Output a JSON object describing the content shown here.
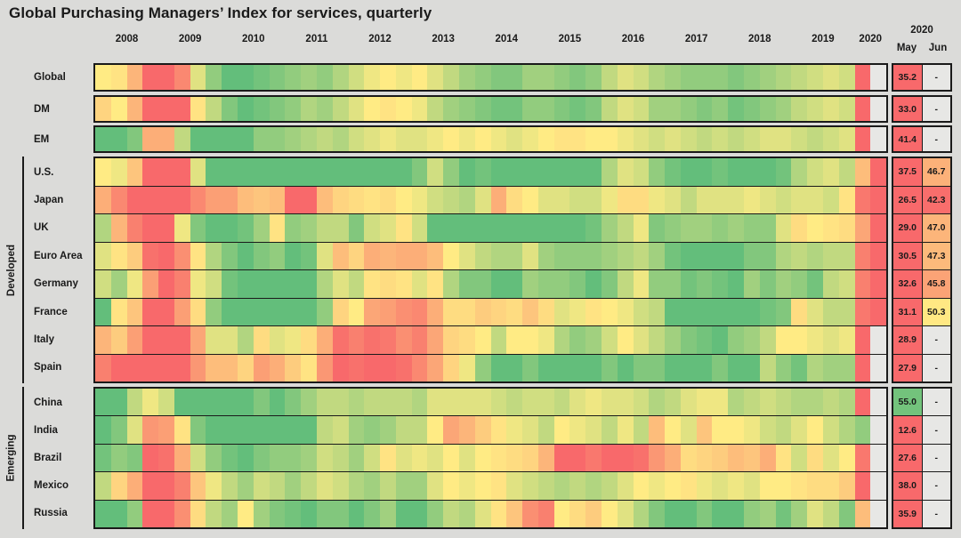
{
  "title": "Global Purchasing Managers’ Index for services, quarterly",
  "years": [
    "2008",
    "2009",
    "2010",
    "2011",
    "2012",
    "2013",
    "2014",
    "2015",
    "2016",
    "2017",
    "2018",
    "2019",
    "2020"
  ],
  "right_header": {
    "year": "2020",
    "may": "May",
    "jun": "Jun"
  },
  "no_data_marker": "-",
  "colors": {
    "background": "#DBDBD9",
    "border": "#1a1a1a",
    "empty_cell": "#E7E7E5",
    "scale_low": "#F8696B",
    "scale_mid": "#FFEB84",
    "scale_high": "#63BE7B"
  },
  "chart_data": {
    "type": "heatmap",
    "title": "Global Purchasing Managers’ Index for services, quarterly",
    "x_start": "2008Q1",
    "x_end": "2020Q2",
    "quarters_per_year": 4,
    "x_labels": [
      "2008",
      "2009",
      "2010",
      "2011",
      "2012",
      "2013",
      "2014",
      "2015",
      "2016",
      "2017",
      "2018",
      "2019",
      "2020"
    ],
    "extra_columns": [
      "May 2020",
      "Jun 2020"
    ],
    "legend_position": "none",
    "color_scale": {
      "low": {
        "value": 42,
        "color": "#F8696B"
      },
      "mid": {
        "value": 50.5,
        "color": "#FFEB84"
      },
      "high": {
        "value": 55.5,
        "color": "#63BE7B"
      }
    },
    "values_note": "quarterly cell values estimated from cell colors; May/Jun 2020 values printed on chart",
    "groups": [
      {
        "label": "",
        "rows": [
          {
            "label": "Global",
            "may": 35.2,
            "jun": null,
            "quarterly": [
              50.5,
              50,
              47,
              40,
              40,
              44,
              51.5,
              54,
              55.5,
              56,
              55,
              54.5,
              54,
              53.5,
              54,
              53,
              52,
              51,
              50.5,
              51,
              50.5,
              51.5,
              52.5,
              53.5,
              54,
              54.5,
              54.5,
              53.5,
              53.5,
              54,
              54.5,
              54,
              52.5,
              51.5,
              52,
              53,
              53.5,
              54,
              54,
              54,
              54.5,
              54,
              53.5,
              53,
              52.5,
              52,
              51.5,
              52,
              40,
              null
            ]
          }
        ]
      },
      {
        "label": "",
        "rows": [
          {
            "label": "DM",
            "may": 33.0,
            "jun": null,
            "quarterly": [
              49,
              50.5,
              47,
              39.5,
              39.5,
              39.5,
              50,
              52.5,
              54.5,
              55.5,
              55,
              54.5,
              54,
              53,
              53.5,
              52.5,
              51.5,
              50.5,
              50,
              50.5,
              51,
              52.5,
              53.5,
              54,
              54.5,
              55,
              55,
              54,
              54,
              54.5,
              55,
              54.5,
              52.5,
              51.5,
              52,
              53.5,
              53.5,
              54,
              54.5,
              54,
              55,
              54.5,
              54,
              53.5,
              52.5,
              52,
              51.5,
              52,
              38,
              null
            ]
          }
        ]
      },
      {
        "label": "",
        "rows": [
          {
            "label": "EM",
            "may": 41.4,
            "jun": null,
            "quarterly": [
              56,
              55.5,
              54.5,
              46.5,
              46.5,
              52.5,
              56,
              56,
              56,
              55.5,
              54,
              54,
              53.5,
              53,
              52.5,
              53,
              52,
              51.5,
              51,
              51.5,
              51.5,
              51,
              50.5,
              51,
              50.5,
              51,
              51.5,
              51,
              50.5,
              50,
              50,
              50.5,
              50.5,
              51,
              51.5,
              52,
              51.5,
              52,
              52.5,
              52,
              52.5,
              52,
              51.5,
              51.5,
              52,
              52.5,
              52,
              51.5,
              41,
              null
            ]
          }
        ]
      },
      {
        "label": "Developed",
        "rows": [
          {
            "label": "U.S.",
            "may": 37.5,
            "jun": 46.7,
            "quarterly": [
              50.5,
              51,
              48,
              38.5,
              38.5,
              41,
              51.5,
              56,
              56.5,
              57,
              56,
              56.5,
              56,
              55.5,
              56,
              55.5,
              56,
              56.5,
              55.5,
              55.5,
              54.5,
              52,
              54,
              55.5,
              55,
              57,
              57.5,
              56.5,
              56.5,
              56.5,
              56,
              55.5,
              53,
              51.5,
              52,
              54,
              55,
              56,
              55.5,
              55,
              55.5,
              56.5,
              56,
              55,
              53,
              52,
              51.5,
              52.5,
              47.5,
              37
            ]
          },
          {
            "label": "Japan",
            "may": 26.5,
            "jun": 42.3,
            "quarterly": [
              46.5,
              44,
              41,
              37.5,
              36.5,
              41.5,
              44,
              45.5,
              45.5,
              47.5,
              48,
              47.5,
              42,
              40,
              47.5,
              49,
              49.5,
              50,
              49.5,
              50.5,
              51,
              52,
              52.5,
              53,
              51.5,
              46.5,
              49.5,
              50.5,
              51.5,
              51.5,
              52,
              52,
              51,
              49.5,
              49.5,
              51,
              51.5,
              52.5,
              51.5,
              51.5,
              51.5,
              51,
              51.5,
              52,
              51.5,
              51.5,
              52,
              50,
              43,
              30
            ]
          },
          {
            "label": "UK",
            "may": 29.0,
            "jun": 47.0,
            "quarterly": [
              53,
              47,
              43.5,
              40.5,
              40.5,
              51,
              54.5,
              56,
              56.5,
              55,
              53.5,
              50,
              54,
              53.5,
              52.5,
              52.5,
              54.5,
              52,
              51.5,
              50,
              52,
              55.5,
              58,
              59.5,
              58.5,
              58.5,
              58.5,
              57,
              57.5,
              57.5,
              56,
              55,
              53.5,
              52.5,
              51,
              54.5,
              54,
              53.5,
              53.5,
              54,
              53.5,
              54,
              54,
              51.5,
              49.5,
              50.5,
              50,
              49.5,
              46,
              30
            ]
          },
          {
            "label": "Euro Area",
            "may": 30.5,
            "jun": 47.3,
            "quarterly": [
              51.5,
              50,
              48.5,
              42.5,
              41.5,
              44.5,
              50,
              53,
              54.5,
              55.5,
              54.5,
              54,
              55.5,
              55,
              51.5,
              47.5,
              49,
              46.5,
              47,
              46.5,
              46.5,
              47.5,
              50.5,
              51.5,
              52.5,
              53,
              53,
              51.5,
              53.5,
              54,
              54,
              54,
              53.5,
              53,
              52.5,
              53.5,
              55,
              56,
              55.5,
              55.5,
              56.5,
              54.5,
              54.5,
              53,
              52.5,
              53,
              52.5,
              52.5,
              43.5,
              30
            ]
          },
          {
            "label": "Germany",
            "may": 32.6,
            "jun": 45.8,
            "quarterly": [
              52,
              53.5,
              51,
              45.5,
              42,
              43.5,
              51,
              52,
              55,
              56,
              55.5,
              57,
              57.5,
              56.5,
              53,
              51.5,
              52.5,
              50,
              49.5,
              50,
              51.5,
              50,
              53,
              54.5,
              54.5,
              55.5,
              55.5,
              53.5,
              54,
              54,
              54.5,
              55.5,
              54.5,
              52.5,
              51,
              54,
              54,
              55,
              54.5,
              55,
              55.5,
              53.5,
              54.5,
              53.5,
              54,
              55,
              52.5,
              52,
              43.5,
              31.5
            ]
          },
          {
            "label": "France",
            "may": 31.1,
            "jun": 50.3,
            "quarterly": [
              56,
              50,
              48,
              41,
              40,
              45.5,
              49.5,
              54,
              56.5,
              58,
              57.5,
              56.5,
              58,
              57.5,
              54,
              49,
              50.5,
              46,
              45.5,
              44.5,
              44,
              46.5,
              49.5,
              49.5,
              48.5,
              49,
              49.5,
              48,
              49.5,
              51.5,
              51,
              50,
              50.5,
              51,
              52,
              52.5,
              56,
              56.5,
              57,
              59,
              57.5,
              56,
              55,
              54.5,
              49.5,
              51.5,
              52.5,
              52.5,
              43,
              30.5
            ]
          },
          {
            "label": "Italy",
            "may": 28.9,
            "jun": null,
            "quarterly": [
              47,
              48.5,
              45.5,
              40,
              39.5,
              42,
              46,
              51.5,
              51.5,
              53,
              49.5,
              51.5,
              51,
              49.5,
              46.5,
              42.5,
              43.5,
              42.5,
              43,
              44.5,
              43.5,
              46,
              49,
              49.5,
              50.5,
              52.5,
              50.5,
              50.5,
              51,
              53,
              54,
              53.5,
              52,
              50.5,
              51.5,
              52.5,
              53.5,
              54.5,
              55,
              55.5,
              54,
              53.5,
              52.5,
              50.5,
              50.5,
              51,
              51.5,
              51,
              40,
              null
            ]
          },
          {
            "label": "Spain",
            "may": 27.9,
            "jun": null,
            "quarterly": [
              43.5,
              41,
              36.5,
              32.5,
              32,
              37.5,
              45,
              47.5,
              47.5,
              49,
              45.5,
              46.5,
              48.5,
              50,
              45,
              42,
              42.5,
              42,
              41.5,
              42.5,
              44,
              46,
              49,
              51,
              54,
              55.5,
              56.5,
              54.5,
              56.5,
              58,
              57.5,
              56,
              54.5,
              55.5,
              54.5,
              54.5,
              56.5,
              57.5,
              56.5,
              54.5,
              56.5,
              55.5,
              52.5,
              54,
              55,
              53,
              53.5,
              53.5,
              42,
              null
            ]
          }
        ]
      },
      {
        "label": "Emerging",
        "rows": [
          {
            "label": "China",
            "may": 55.0,
            "jun": null,
            "quarterly": [
              57,
              56,
              52.5,
              51,
              52,
              55.5,
              56.5,
              57,
              57.5,
              56,
              54.5,
              55.5,
              54.5,
              53.5,
              52.5,
              52.5,
              53,
              52.5,
              52.5,
              52.5,
              53,
              51.5,
              51.5,
              51.5,
              51.5,
              52,
              52.5,
              52,
              52,
              52.5,
              51.5,
              51,
              51.5,
              51.5,
              52,
              53,
              52.5,
              51.5,
              51,
              51,
              53,
              52.5,
              52,
              52.5,
              53,
              53,
              52.5,
              53,
              41,
              null
            ]
          },
          {
            "label": "India",
            "may": 12.6,
            "jun": null,
            "quarterly": [
              56,
              54.5,
              51.5,
              45,
              45.5,
              50,
              54.5,
              56.5,
              57.5,
              58.5,
              57.5,
              57.5,
              58,
              56,
              52.5,
              52,
              53.5,
              54,
              53.5,
              52.5,
              52.5,
              50.5,
              46,
              47,
              48.5,
              50,
              51,
              51.5,
              52.5,
              50.5,
              51,
              51.5,
              52.5,
              51,
              52.5,
              47.5,
              50.5,
              51.5,
              48,
              50.5,
              50.5,
              51,
              52,
              52.5,
              51.5,
              50.5,
              52,
              53,
              54,
              null
            ]
          },
          {
            "label": "Brazil",
            "may": 27.6,
            "jun": null,
            "quarterly": [
              55,
              54,
              54.5,
              42,
              42.5,
              46.5,
              52,
              54,
              55,
              56.5,
              54.5,
              54,
              54,
              53.5,
              52,
              52.5,
              53.5,
              52,
              50,
              51.5,
              51,
              51.5,
              50.5,
              51.5,
              50.5,
              50,
              49.5,
              49,
              47,
              42,
              41.5,
              43,
              40.5,
              41.5,
              42.5,
              45,
              46.5,
              49.5,
              49,
              48.5,
              47.5,
              48,
              46.5,
              50,
              52,
              49.5,
              51.5,
              50.5,
              43,
              null
            ]
          },
          {
            "label": "Mexico",
            "may": 38.0,
            "jun": null,
            "quarterly": [
              52.5,
              49,
              46.5,
              41,
              40.5,
              43.5,
              48,
              51,
              52.5,
              53.5,
              52,
              52.5,
              53.5,
              52.5,
              51.5,
              52,
              53,
              53.5,
              52.5,
              53.5,
              53.5,
              51.5,
              50.5,
              51,
              50.5,
              50,
              51.5,
              52,
              52.5,
              53,
              52.5,
              53,
              52.5,
              51.5,
              50.5,
              51,
              50.5,
              50,
              51,
              51.5,
              51,
              51.5,
              50.5,
              50.5,
              50,
              49.5,
              49.5,
              48.5,
              42,
              null
            ]
          },
          {
            "label": "Russia",
            "may": 35.9,
            "jun": null,
            "quarterly": [
              56,
              55.5,
              54,
              42,
              36.5,
              44.5,
              49.5,
              52.5,
              53.5,
              50.5,
              53.5,
              54.5,
              55,
              56,
              54.5,
              54.5,
              55.5,
              54.5,
              53.5,
              56,
              55.5,
              54,
              52.5,
              53,
              51.5,
              50,
              48,
              44.5,
              43.5,
              50.5,
              49.5,
              48.5,
              50.5,
              51.5,
              53,
              54.5,
              56,
              55.5,
              54.5,
              56.5,
              55.5,
              54,
              53.5,
              55,
              53.5,
              51.5,
              52.5,
              54.5,
              47.5,
              null
            ]
          }
        ]
      }
    ]
  }
}
